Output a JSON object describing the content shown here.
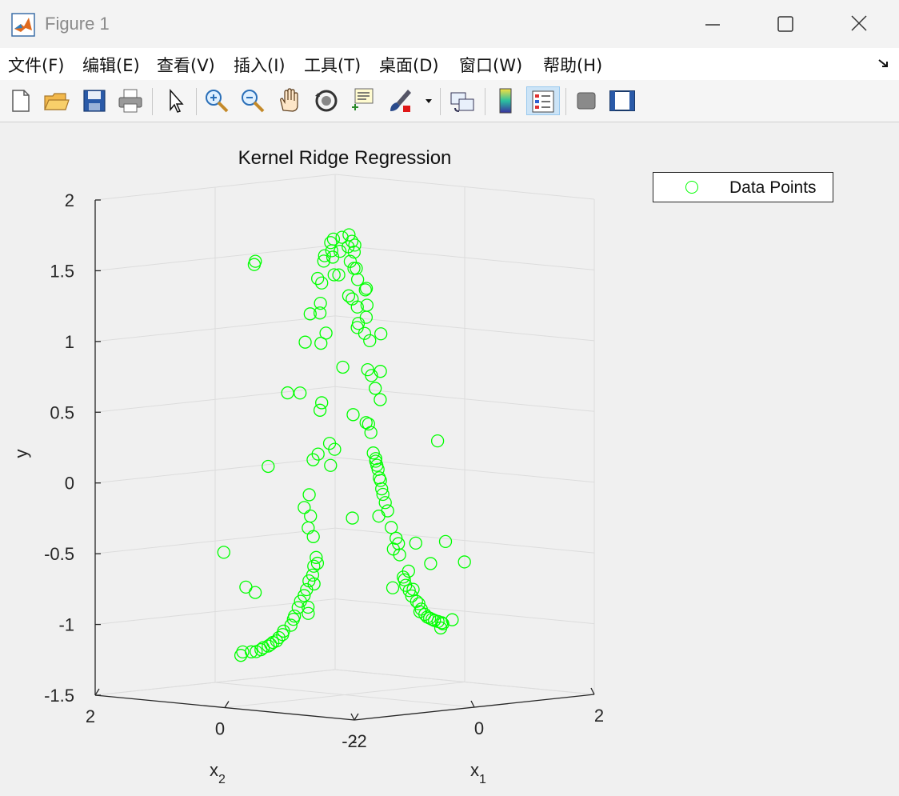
{
  "window": {
    "title": "Figure 1",
    "controls": [
      "minimize-icon",
      "maximize-icon",
      "close-icon"
    ]
  },
  "menu": {
    "items": [
      "文件(F)",
      "编辑(E)",
      "查看(V)",
      "插入(I)",
      "工具(T)",
      "桌面(D)",
      "窗口(W)",
      "帮助(H)"
    ]
  },
  "toolbar": {
    "icons": [
      "new-figure-icon",
      "open-file-icon",
      "save-icon",
      "print-icon",
      "select-arrow-icon",
      "zoom-in-icon",
      "zoom-out-icon",
      "pan-hand-icon",
      "rotate-3d-icon",
      "data-cursor-icon",
      "brush-icon",
      "link-plot-icon",
      "colorbar-icon",
      "legend-icon",
      "hide-plot-tools-icon",
      "show-plot-tools-icon"
    ],
    "active": "legend-icon"
  },
  "colors": {
    "marker": "#00ff00",
    "axis": "#262626",
    "grid": "#dcdcdc",
    "toolbar_active": "#cce4f7"
  },
  "chart_data": {
    "type": "scatter",
    "projection": "3d",
    "title": "Kernel Ridge Regression",
    "xlabel": "x",
    "xlabel_sub": "1",
    "ylabel": "x",
    "ylabel_sub": "2",
    "zlabel": "y",
    "xlim": [
      -2,
      2
    ],
    "ylim": [
      -2,
      2
    ],
    "zlim": [
      -1.5,
      2
    ],
    "xticks": [
      "-2",
      "0",
      "2"
    ],
    "yticks": [
      "-2",
      "0",
      "2"
    ],
    "zticks": [
      "-1.5",
      "-1",
      "-0.5",
      "0",
      "0.5",
      "1",
      "1.5",
      "2"
    ],
    "grid": true,
    "legend": {
      "position": "top-right-outside",
      "entries": [
        "Data Points"
      ]
    },
    "series": [
      {
        "name": "Data Points",
        "marker": "circle-open",
        "color": "#00ff00",
        "points": [
          [
            0.05,
            -0.02,
            1.75
          ],
          [
            0.02,
            0.06,
            1.73
          ],
          [
            -0.08,
            0.1,
            1.72
          ],
          [
            0.12,
            0.0,
            1.7
          ],
          [
            -0.04,
            0.18,
            1.69
          ],
          [
            0.06,
            -0.1,
            1.68
          ],
          [
            0.1,
            0.04,
            1.66
          ],
          [
            -0.1,
            -0.02,
            1.64
          ],
          [
            0.0,
            0.2,
            1.63
          ],
          [
            0.18,
            0.02,
            1.62
          ],
          [
            -0.12,
            0.2,
            1.6
          ],
          [
            0.06,
            0.24,
            1.58
          ],
          [
            -0.22,
            0.12,
            1.57
          ],
          [
            0.2,
            0.1,
            1.55
          ],
          [
            0.02,
            -0.16,
            1.52
          ],
          [
            0.24,
            0.08,
            1.5
          ],
          [
            -0.22,
            -0.04,
            1.48
          ],
          [
            0.16,
            0.24,
            1.45
          ],
          [
            -0.3,
            0.14,
            1.45
          ],
          [
            0.28,
            0.06,
            1.42
          ],
          [
            -0.06,
            0.3,
            1.4
          ],
          [
            0.08,
            -0.26,
            1.38
          ],
          [
            0.3,
            -0.04,
            1.35
          ],
          [
            -0.2,
            -0.3,
            1.32
          ],
          [
            0.26,
            0.18,
            1.3
          ],
          [
            -0.34,
            0.06,
            1.28
          ],
          [
            0.22,
            -0.14,
            1.25
          ],
          [
            0.34,
            0.12,
            1.22
          ],
          [
            -0.36,
            0.2,
            1.2
          ],
          [
            0.02,
            0.4,
            1.18
          ],
          [
            0.38,
            0.02,
            1.15
          ],
          [
            -0.18,
            -0.36,
            1.12
          ],
          [
            0.4,
            0.16,
            1.1
          ],
          [
            -0.42,
            -0.1,
            1.08
          ],
          [
            0.3,
            -0.28,
            1.05
          ],
          [
            0.44,
            0.1,
            1.03
          ],
          [
            -0.4,
            0.24,
            1.0
          ],
          [
            0.46,
            0.04,
            0.98
          ],
          [
            0.1,
            0.46,
            0.96
          ],
          [
            0.12,
            -0.44,
            0.8
          ],
          [
            0.4,
            0.4,
            0.78
          ],
          [
            0.62,
            0.22,
            0.76
          ],
          [
            0.64,
            0.18,
            0.72
          ],
          [
            -0.52,
            0.4,
            0.64
          ],
          [
            0.66,
            0.14,
            0.63
          ],
          [
            -0.6,
            -0.2,
            0.6
          ],
          [
            0.7,
            0.1,
            0.55
          ],
          [
            -0.4,
            -0.5,
            0.52
          ],
          [
            0.68,
            0.3,
            0.38
          ],
          [
            0.7,
            0.28,
            0.37
          ],
          [
            -0.62,
            -0.34,
            0.32
          ],
          [
            -0.6,
            -0.4,
            0.28
          ],
          [
            -0.66,
            -0.2,
            0.24
          ],
          [
            -0.7,
            -0.16,
            0.2
          ],
          [
            -0.56,
            -0.3,
            0.16
          ],
          [
            0.8,
            0.3,
            0.16
          ],
          [
            0.82,
            0.28,
            0.12
          ],
          [
            0.84,
            0.3,
            0.1
          ],
          [
            0.86,
            0.3,
            0.07
          ],
          [
            0.88,
            0.3,
            0.04
          ],
          [
            0.9,
            0.3,
            -0.02
          ],
          [
            0.92,
            0.3,
            -0.04
          ],
          [
            -0.7,
            -0.1,
            -0.05
          ],
          [
            0.94,
            0.3,
            -0.1
          ],
          [
            -0.74,
            -0.06,
            -0.14
          ],
          [
            0.96,
            0.3,
            -0.14
          ],
          [
            -0.7,
            -0.12,
            -0.2
          ],
          [
            1.0,
            0.3,
            -0.2
          ],
          [
            1.04,
            0.3,
            -0.26
          ],
          [
            -0.76,
            -0.14,
            -0.28
          ],
          [
            1.0,
            0.4,
            -0.3
          ],
          [
            -0.74,
            -0.2,
            -0.34
          ],
          [
            1.1,
            0.3,
            -0.38
          ],
          [
            1.18,
            0.3,
            -0.46
          ],
          [
            -0.8,
            -0.3,
            -0.48
          ],
          [
            1.22,
            0.3,
            -0.5
          ],
          [
            -0.8,
            -0.32,
            -0.52
          ],
          [
            1.2,
            0.36,
            -0.54
          ],
          [
            -0.84,
            -0.3,
            -0.54
          ],
          [
            1.24,
            0.3,
            -0.58
          ],
          [
            -0.88,
            -0.32,
            -0.6
          ],
          [
            -0.92,
            -0.3,
            -0.64
          ],
          [
            -0.9,
            -0.36,
            -0.66
          ],
          [
            -0.96,
            -0.3,
            -0.7
          ],
          [
            1.3,
            0.3,
            -0.74
          ],
          [
            -1.0,
            -0.3,
            -0.74
          ],
          [
            1.32,
            0.3,
            -0.76
          ],
          [
            -1.04,
            -0.28,
            -0.78
          ],
          [
            1.34,
            0.3,
            -0.8
          ],
          [
            -1.0,
            -0.36,
            -0.82
          ],
          [
            -1.1,
            -0.3,
            -0.82
          ],
          [
            1.4,
            0.3,
            -0.84
          ],
          [
            -1.04,
            -0.4,
            -0.86
          ],
          [
            -1.14,
            -0.28,
            -0.88
          ],
          [
            1.44,
            0.3,
            -0.88
          ],
          [
            -1.18,
            -0.3,
            -0.9
          ],
          [
            1.5,
            0.28,
            -0.92
          ],
          [
            -1.22,
            -0.3,
            -0.94
          ],
          [
            1.56,
            0.3,
            -0.94
          ],
          [
            -1.3,
            -0.26,
            -0.98
          ],
          [
            1.6,
            0.3,
            -0.98
          ],
          [
            -1.36,
            -0.3,
            -1.0
          ],
          [
            1.62,
            0.34,
            -1.0
          ],
          [
            -1.4,
            -0.28,
            -1.02
          ],
          [
            1.66,
            0.3,
            -1.02
          ],
          [
            -1.46,
            -0.3,
            -1.04
          ],
          [
            1.7,
            0.3,
            -1.04
          ],
          [
            -1.5,
            -0.28,
            -1.05
          ],
          [
            1.74,
            0.3,
            -1.05
          ],
          [
            -1.56,
            -0.3,
            -1.06
          ],
          [
            1.78,
            0.3,
            -1.06
          ],
          [
            -1.6,
            -0.3,
            -1.07
          ],
          [
            1.82,
            0.3,
            -1.07
          ],
          [
            -1.66,
            -0.28,
            -1.08
          ],
          [
            1.88,
            0.3,
            -1.08
          ],
          [
            -1.72,
            -0.3,
            -1.09
          ],
          [
            1.92,
            0.28,
            -1.09
          ],
          [
            -1.8,
            -0.3,
            -1.1
          ],
          [
            1.96,
            0.3,
            -1.1
          ],
          [
            -1.86,
            -0.28,
            -1.1
          ],
          [
            -1.4,
            0.1,
            1.6
          ],
          [
            -1.36,
            0.12,
            1.62
          ],
          [
            1.1,
            1.4,
            0.4
          ],
          [
            1.2,
            1.8,
            0.5
          ],
          [
            -1.6,
            -0.3,
            0.2
          ],
          [
            0.9,
            -0.6,
            0.28
          ],
          [
            1.3,
            0.8,
            0.26
          ],
          [
            -1.8,
            0.2,
            -0.42
          ],
          [
            0.6,
            -1.0,
            -0.4
          ],
          [
            1.1,
            0.9,
            -0.34
          ],
          [
            0.7,
            -1.2,
            -0.54
          ],
          [
            1.4,
            0.2,
            -0.5
          ],
          [
            -1.0,
            0.6,
            -0.72
          ],
          [
            1.0,
            -0.4,
            -0.6
          ],
          [
            0.2,
            -0.8,
            -0.6
          ],
          [
            -1.6,
            -0.1,
            -0.7
          ],
          [
            0.6,
            -0.5,
            -0.76
          ],
          [
            0.8,
            0.0,
            -0.78
          ],
          [
            -1.3,
            0.4,
            -1.18
          ],
          [
            1.6,
            0.0,
            -1.1
          ],
          [
            -1.7,
            0.0,
            -1.12
          ],
          [
            1.9,
            0.1,
            -1.06
          ]
        ]
      }
    ]
  }
}
